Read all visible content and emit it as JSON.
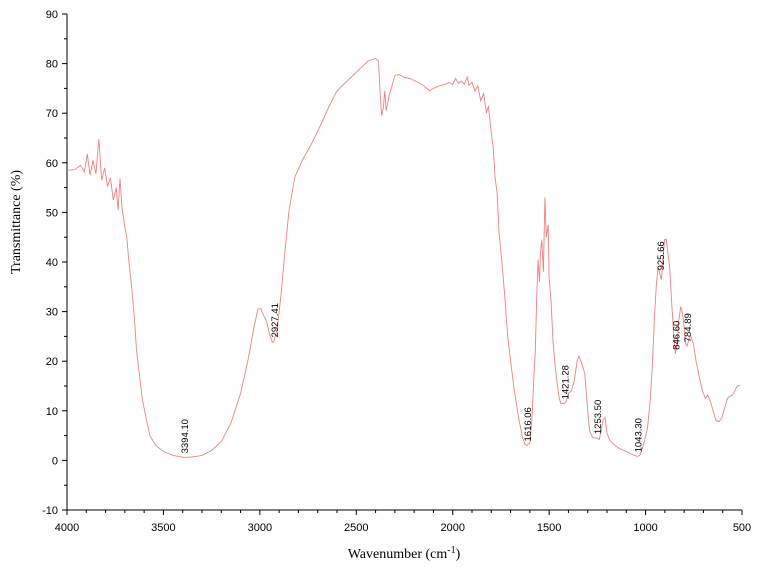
{
  "chart_data": {
    "type": "line",
    "title": "",
    "xlabel": "Wavenumber (cm",
    "xlabel_sup": "-1",
    "xlabel_tail": ")",
    "ylabel": "Transmittance (%)",
    "xlim": [
      4000,
      500
    ],
    "ylim": [
      -10,
      90
    ],
    "x_reversed": true,
    "grid": false,
    "line_color": "#f08080",
    "x_ticks": [
      4000,
      3500,
      3000,
      2500,
      2000,
      1500,
      1000,
      500
    ],
    "y_ticks": [
      -10,
      0,
      10,
      20,
      30,
      40,
      50,
      60,
      70,
      80,
      90
    ],
    "series": [
      {
        "name": "",
        "points": [
          [
            4000,
            58.5
          ],
          [
            3960,
            58.6
          ],
          [
            3930,
            59.5
          ],
          [
            3910,
            58.2
          ],
          [
            3895,
            61.8
          ],
          [
            3880,
            57.5
          ],
          [
            3865,
            60.5
          ],
          [
            3850,
            57.8
          ],
          [
            3835,
            64.8
          ],
          [
            3820,
            56.5
          ],
          [
            3805,
            59.0
          ],
          [
            3790,
            55.2
          ],
          [
            3775,
            57.0
          ],
          [
            3760,
            52.5
          ],
          [
            3745,
            55.0
          ],
          [
            3735,
            50.5
          ],
          [
            3725,
            56.8
          ],
          [
            3715,
            51.0
          ],
          [
            3700,
            47.0
          ],
          [
            3690,
            45.0
          ],
          [
            3680,
            40.5
          ],
          [
            3665,
            35.0
          ],
          [
            3650,
            28.5
          ],
          [
            3640,
            22.5
          ],
          [
            3625,
            17.5
          ],
          [
            3610,
            12.5
          ],
          [
            3590,
            8.5
          ],
          [
            3570,
            5.0
          ],
          [
            3540,
            3.0
          ],
          [
            3500,
            1.8
          ],
          [
            3450,
            1.0
          ],
          [
            3394,
            0.6
          ],
          [
            3350,
            0.7
          ],
          [
            3300,
            1.0
          ],
          [
            3250,
            2.0
          ],
          [
            3200,
            3.8
          ],
          [
            3150,
            7.5
          ],
          [
            3100,
            13.5
          ],
          [
            3060,
            20.5
          ],
          [
            3030,
            27.0
          ],
          [
            3010,
            30.5
          ],
          [
            2995,
            30.6
          ],
          [
            2980,
            29.2
          ],
          [
            2965,
            28.0
          ],
          [
            2950,
            25.5
          ],
          [
            2935,
            23.8
          ],
          [
            2927,
            24.0
          ],
          [
            2910,
            26.5
          ],
          [
            2890,
            33.5
          ],
          [
            2870,
            42.0
          ],
          [
            2850,
            50.0
          ],
          [
            2820,
            57.0
          ],
          [
            2780,
            60.5
          ],
          [
            2730,
            64.0
          ],
          [
            2680,
            68.0
          ],
          [
            2640,
            71.5
          ],
          [
            2600,
            74.5
          ],
          [
            2560,
            76.0
          ],
          [
            2520,
            77.5
          ],
          [
            2480,
            79.0
          ],
          [
            2440,
            80.5
          ],
          [
            2400,
            81.0
          ],
          [
            2385,
            80.5
          ],
          [
            2375,
            73.0
          ],
          [
            2368,
            69.5
          ],
          [
            2360,
            71.0
          ],
          [
            2352,
            74.5
          ],
          [
            2345,
            70.5
          ],
          [
            2330,
            73.5
          ],
          [
            2315,
            75.5
          ],
          [
            2300,
            77.6
          ],
          [
            2280,
            77.8
          ],
          [
            2250,
            77.2
          ],
          [
            2220,
            77.0
          ],
          [
            2180,
            76.2
          ],
          [
            2150,
            75.5
          ],
          [
            2120,
            74.5
          ],
          [
            2100,
            75.0
          ],
          [
            2070,
            75.5
          ],
          [
            2040,
            75.8
          ],
          [
            2020,
            76.2
          ],
          [
            2000,
            75.8
          ],
          [
            1985,
            77.0
          ],
          [
            1970,
            76.0
          ],
          [
            1955,
            76.5
          ],
          [
            1940,
            75.8
          ],
          [
            1925,
            77.3
          ],
          [
            1915,
            75.6
          ],
          [
            1900,
            76.2
          ],
          [
            1885,
            74.5
          ],
          [
            1870,
            75.5
          ],
          [
            1855,
            72.5
          ],
          [
            1840,
            74.0
          ],
          [
            1825,
            70.0
          ],
          [
            1815,
            71.5
          ],
          [
            1800,
            66.0
          ],
          [
            1790,
            63.0
          ],
          [
            1780,
            57.0
          ],
          [
            1770,
            54.0
          ],
          [
            1760,
            46.0
          ],
          [
            1745,
            40.0
          ],
          [
            1730,
            33.0
          ],
          [
            1715,
            25.0
          ],
          [
            1700,
            20.0
          ],
          [
            1680,
            14.0
          ],
          [
            1660,
            9.0
          ],
          [
            1640,
            5.0
          ],
          [
            1625,
            3.2
          ],
          [
            1616,
            3.0
          ],
          [
            1600,
            3.5
          ],
          [
            1590,
            8.0
          ],
          [
            1580,
            16.0
          ],
          [
            1572,
            22.0
          ],
          [
            1565,
            32.0
          ],
          [
            1558,
            40.5
          ],
          [
            1550,
            36.0
          ],
          [
            1545,
            42.0
          ],
          [
            1538,
            44.5
          ],
          [
            1530,
            38.0
          ],
          [
            1522,
            53.0
          ],
          [
            1515,
            45.0
          ],
          [
            1505,
            47.5
          ],
          [
            1500,
            37.0
          ],
          [
            1490,
            32.0
          ],
          [
            1480,
            24.0
          ],
          [
            1470,
            19.5
          ],
          [
            1460,
            16.0
          ],
          [
            1450,
            13.0
          ],
          [
            1440,
            11.5
          ],
          [
            1421,
            11.5
          ],
          [
            1410,
            12.0
          ],
          [
            1400,
            13.5
          ],
          [
            1385,
            14.0
          ],
          [
            1370,
            16.0
          ],
          [
            1355,
            20.0
          ],
          [
            1345,
            21.0
          ],
          [
            1330,
            19.5
          ],
          [
            1315,
            17.5
          ],
          [
            1300,
            10.0
          ],
          [
            1290,
            6.0
          ],
          [
            1275,
            4.6
          ],
          [
            1253,
            4.5
          ],
          [
            1240,
            4.2
          ],
          [
            1230,
            6.0
          ],
          [
            1220,
            8.2
          ],
          [
            1210,
            8.6
          ],
          [
            1200,
            5.5
          ],
          [
            1185,
            4.0
          ],
          [
            1165,
            3.2
          ],
          [
            1140,
            2.5
          ],
          [
            1100,
            1.8
          ],
          [
            1070,
            1.2
          ],
          [
            1043,
            0.8
          ],
          [
            1030,
            1.0
          ],
          [
            1020,
            2.0
          ],
          [
            1005,
            4.0
          ],
          [
            990,
            6.5
          ],
          [
            975,
            12.5
          ],
          [
            965,
            19.0
          ],
          [
            955,
            28.0
          ],
          [
            945,
            35.0
          ],
          [
            935,
            39.0
          ],
          [
            925,
            37.5
          ],
          [
            918,
            36.5
          ],
          [
            910,
            40.0
          ],
          [
            902,
            44.5
          ],
          [
            893,
            44.6
          ],
          [
            885,
            42.0
          ],
          [
            875,
            39.0
          ],
          [
            865,
            32.0
          ],
          [
            855,
            26.0
          ],
          [
            846,
            21.5
          ],
          [
            838,
            23.0
          ],
          [
            828,
            28.0
          ],
          [
            818,
            31.0
          ],
          [
            808,
            29.5
          ],
          [
            800,
            27.0
          ],
          [
            792,
            23.5
          ],
          [
            785,
            23.0
          ],
          [
            775,
            24.5
          ],
          [
            765,
            25.0
          ],
          [
            752,
            23.5
          ],
          [
            738,
            20.0
          ],
          [
            720,
            16.5
          ],
          [
            705,
            14.0
          ],
          [
            690,
            12.5
          ],
          [
            678,
            13.2
          ],
          [
            665,
            12.0
          ],
          [
            650,
            10.0
          ],
          [
            635,
            8.0
          ],
          [
            620,
            7.8
          ],
          [
            605,
            8.5
          ],
          [
            590,
            10.5
          ],
          [
            575,
            12.5
          ],
          [
            560,
            13.0
          ],
          [
            548,
            13.2
          ],
          [
            538,
            14.0
          ],
          [
            525,
            15.0
          ],
          [
            510,
            15.2
          ]
        ]
      }
    ],
    "annotations": [
      {
        "text": "3394.10",
        "x": 3394,
        "y": 0.6
      },
      {
        "text": "2927.41",
        "x": 2927,
        "y": 24.0
      },
      {
        "text": "1616.06",
        "x": 1616,
        "y": 3.0
      },
      {
        "text": "1421.28",
        "x": 1421,
        "y": 11.5
      },
      {
        "text": "1253.50",
        "x": 1253,
        "y": 4.5
      },
      {
        "text": "1043.30",
        "x": 1043,
        "y": 0.8
      },
      {
        "text": "925.66",
        "x": 925,
        "y": 37.5
      },
      {
        "text": "846.60",
        "x": 846,
        "y": 21.5
      },
      {
        "text": "784.89",
        "x": 785,
        "y": 23.0
      }
    ]
  }
}
